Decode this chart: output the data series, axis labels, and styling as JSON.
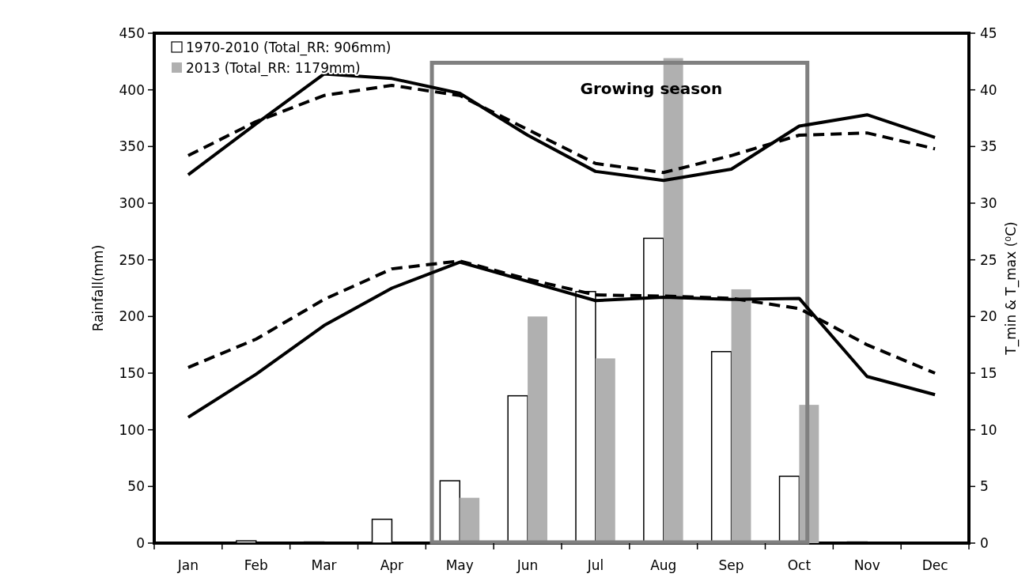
{
  "chart_data": {
    "type": "bar",
    "categories": [
      "Jan",
      "Feb",
      "Mar",
      "Apr",
      "May",
      "Jun",
      "Jul",
      "Aug",
      "Sep",
      "Oct",
      "Nov",
      "Dec"
    ],
    "ylabel": "Rainfall(mm)",
    "y2label": "T_min & T_max (⁰C)",
    "ylim": [
      0,
      450
    ],
    "yticks": [
      0,
      50,
      100,
      150,
      200,
      250,
      300,
      350,
      400,
      450
    ],
    "y2lim": [
      0,
      45
    ],
    "y2ticks": [
      0,
      5,
      10,
      15,
      20,
      25,
      30,
      35,
      40,
      45
    ],
    "legend": "top left",
    "grid": false,
    "series": [
      {
        "name": "1970-2010 (Total_RR: 906mm)",
        "color": "#ffffff",
        "values": [
          0,
          2,
          1,
          21,
          55,
          130,
          222,
          269,
          169,
          59,
          1,
          0
        ]
      },
      {
        "name": "2013 (Total_RR: 1179mm)",
        "color": "#b0b0b0",
        "values": [
          0,
          0,
          0,
          0,
          40,
          200,
          163,
          428,
          224,
          122,
          0,
          0
        ]
      },
      {
        "type": "line",
        "axis": "y2",
        "color": "#000000",
        "line_style": "solid",
        "values": [
          32.5,
          37,
          41.4,
          41,
          39.7,
          36,
          32.8,
          32,
          33,
          36.8,
          37.8,
          35.8
        ]
      },
      {
        "type": "line",
        "axis": "y2",
        "color": "#000000",
        "line_style": "dashed",
        "values": [
          34.2,
          37.2,
          39.5,
          40.4,
          39.5,
          36.5,
          33.5,
          32.7,
          34.2,
          36,
          36.2,
          34.8
        ]
      },
      {
        "type": "line",
        "axis": "y2",
        "color": "#000000",
        "line_style": "solid",
        "values": [
          11.1,
          14.9,
          19.2,
          22.5,
          24.8,
          23.1,
          21.4,
          21.7,
          21.5,
          21.6,
          14.7,
          13.1
        ]
      },
      {
        "type": "line",
        "axis": "y2",
        "color": "#000000",
        "line_style": "dashed",
        "values": [
          15.5,
          18,
          21.5,
          24.2,
          24.9,
          23.3,
          21.9,
          21.8,
          21.6,
          20.7,
          17.5,
          15
        ]
      }
    ],
    "annotations": [
      "Growing season"
    ]
  }
}
